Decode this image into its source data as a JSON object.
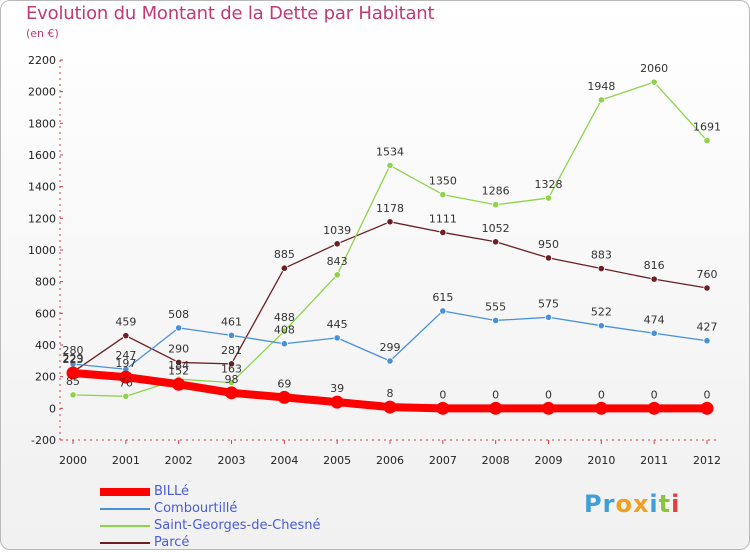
{
  "chart_data": {
    "type": "line",
    "title": "Evolution du Montant de la Dette par Habitant",
    "subtitle": "(en €)",
    "xlabel": "",
    "ylabel": "",
    "categories": [
      "2000",
      "2001",
      "2002",
      "2003",
      "2004",
      "2005",
      "2006",
      "2007",
      "2008",
      "2009",
      "2010",
      "2011",
      "2012"
    ],
    "ylim": [
      -200,
      2200
    ],
    "yticks": [
      -200,
      0,
      200,
      400,
      600,
      800,
      1000,
      1200,
      1400,
      1600,
      1800,
      2000,
      2200
    ],
    "grid": false,
    "legend_position": "bottom-left",
    "series": [
      {
        "name": "BILLé",
        "color": "#ff0000",
        "values": [
          223,
          197,
          152,
          98,
          69,
          39,
          8,
          0,
          0,
          0,
          0,
          0,
          0
        ]
      },
      {
        "name": "Combourtillé",
        "color": "#4a90d9",
        "values": [
          280,
          247,
          508,
          461,
          408,
          445,
          299,
          615,
          555,
          575,
          522,
          474,
          427
        ]
      },
      {
        "name": "Saint-Georges-de-Chesné",
        "color": "#8ed44a",
        "values": [
          85,
          76,
          184,
          163,
          488,
          843,
          1534,
          1350,
          1286,
          1328,
          1948,
          2060,
          1691
        ]
      },
      {
        "name": "Parcé",
        "color": "#6b1f24",
        "values": [
          229,
          459,
          290,
          281,
          885,
          1039,
          1178,
          1111,
          1052,
          950,
          883,
          816,
          760
        ]
      }
    ]
  },
  "branding": {
    "logo_letters": [
      "P",
      "r",
      "o",
      "x",
      "i",
      "t",
      "i"
    ],
    "logo_colors": [
      "#3fa0d8",
      "#3fa0d8",
      "#f0a020",
      "#f0a020",
      "#3fa0d8",
      "#8bc53f",
      "#e04040"
    ]
  }
}
